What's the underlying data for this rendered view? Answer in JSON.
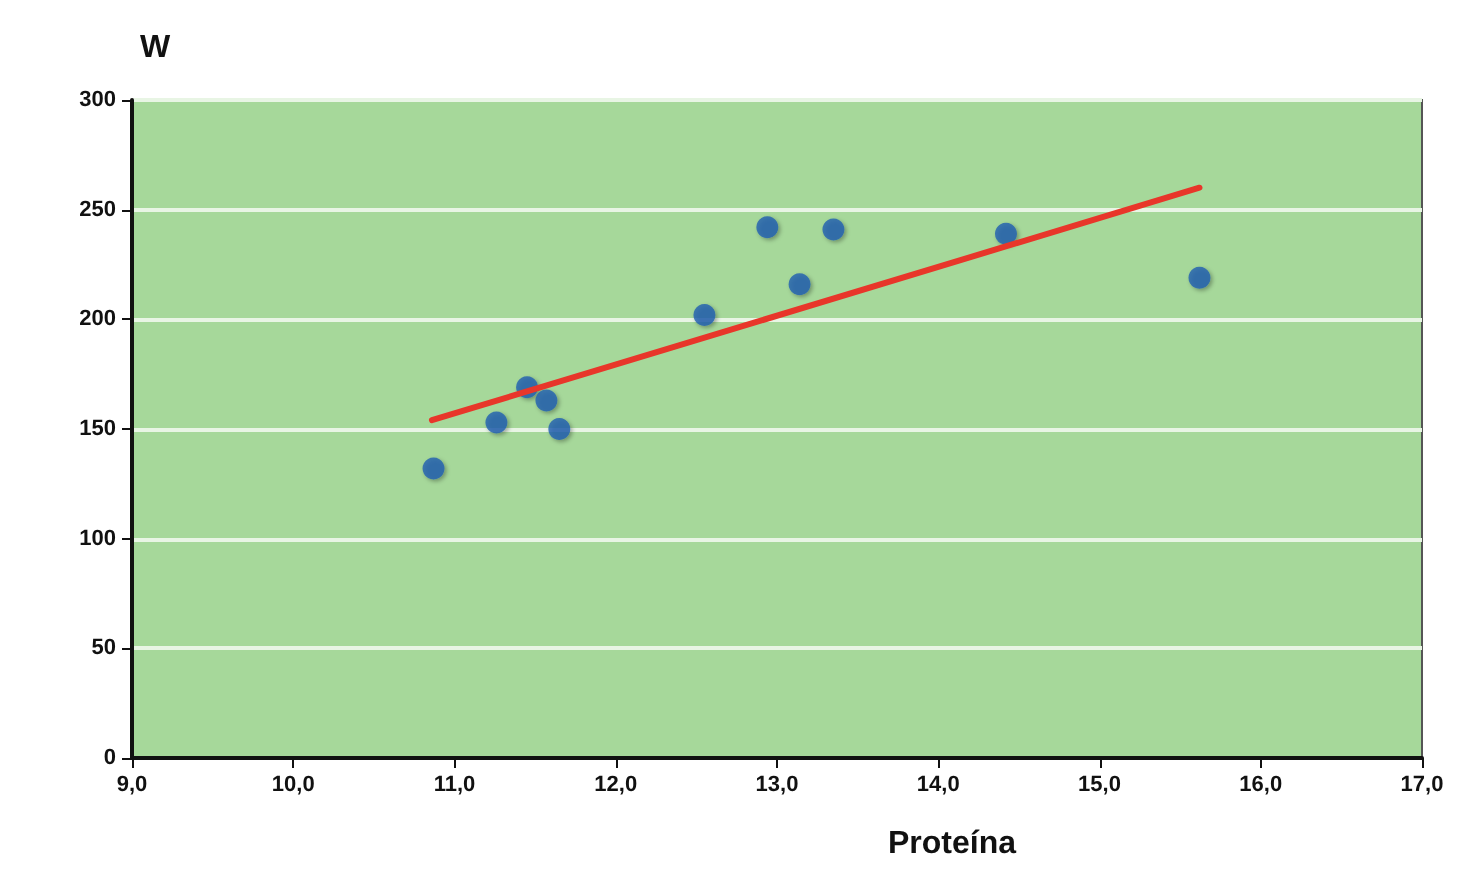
{
  "chart_data": {
    "type": "scatter",
    "ylabel": "W",
    "xlabel": "Proteína",
    "xlim": [
      9,
      17
    ],
    "xticks": [
      {
        "value": 9,
        "label": "9,0"
      },
      {
        "value": 10,
        "label": "10,0"
      },
      {
        "value": 11,
        "label": "11,0"
      },
      {
        "value": 12,
        "label": "12,0"
      },
      {
        "value": 13,
        "label": "13,0"
      },
      {
        "value": 14,
        "label": "14,0"
      },
      {
        "value": 15,
        "label": "15,0"
      },
      {
        "value": 16,
        "label": "16,0"
      },
      {
        "value": 17,
        "label": "17,0"
      }
    ],
    "ylim": [
      0,
      300
    ],
    "yticks": [
      0,
      50,
      100,
      150,
      200,
      250,
      300
    ],
    "grid": "y",
    "marker": "circle",
    "series": [
      {
        "color": "#1f5fb0",
        "x": [
          10.87,
          11.26,
          11.45,
          11.57,
          11.65,
          12.55,
          12.94,
          13.14,
          13.35,
          14.42,
          15.62
        ],
        "values": [
          132,
          153,
          169,
          163,
          150,
          202,
          242,
          216,
          241,
          239,
          219
        ]
      },
      {
        "type": "line",
        "color": "#e8362a",
        "x": [
          10.86,
          15.62
        ],
        "values": [
          154,
          260
        ],
        "marker": "none",
        "line_style": "solid"
      }
    ]
  }
}
